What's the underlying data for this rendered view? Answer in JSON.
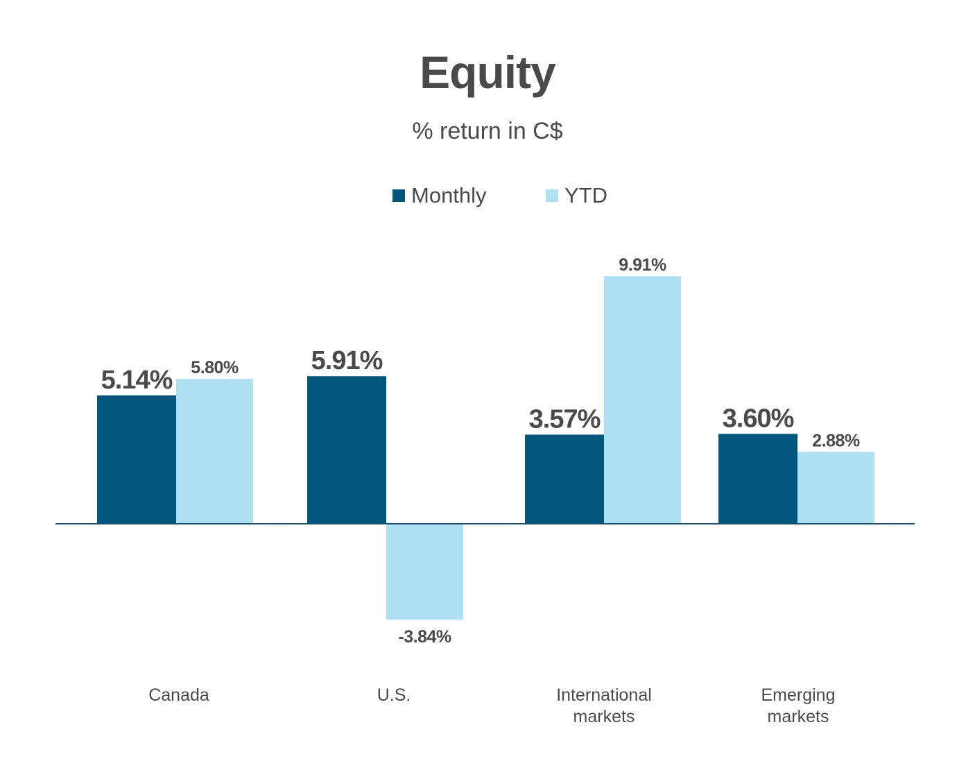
{
  "chart_data": {
    "type": "bar",
    "title": "Equity",
    "subtitle": "% return in C$",
    "categories": [
      "Canada",
      "U.S.",
      "International\nmarkets",
      "Emerging\nmarkets"
    ],
    "series": [
      {
        "name": "Monthly",
        "color": "#00567d",
        "values": [
          5.14,
          5.91,
          3.57,
          3.6
        ],
        "labels": [
          "5.14%",
          "5.91%",
          "3.57%",
          "3.60%"
        ]
      },
      {
        "name": "YTD",
        "color": "#aee0f1",
        "values": [
          5.8,
          -3.84,
          9.91,
          2.88
        ],
        "labels": [
          "5.80%",
          "-3.84%",
          "9.91%",
          "2.88%"
        ]
      }
    ],
    "ylim": [
      -5,
      11
    ],
    "grid": false,
    "legend": "top-center",
    "axis_color": "#1b4f6b"
  }
}
